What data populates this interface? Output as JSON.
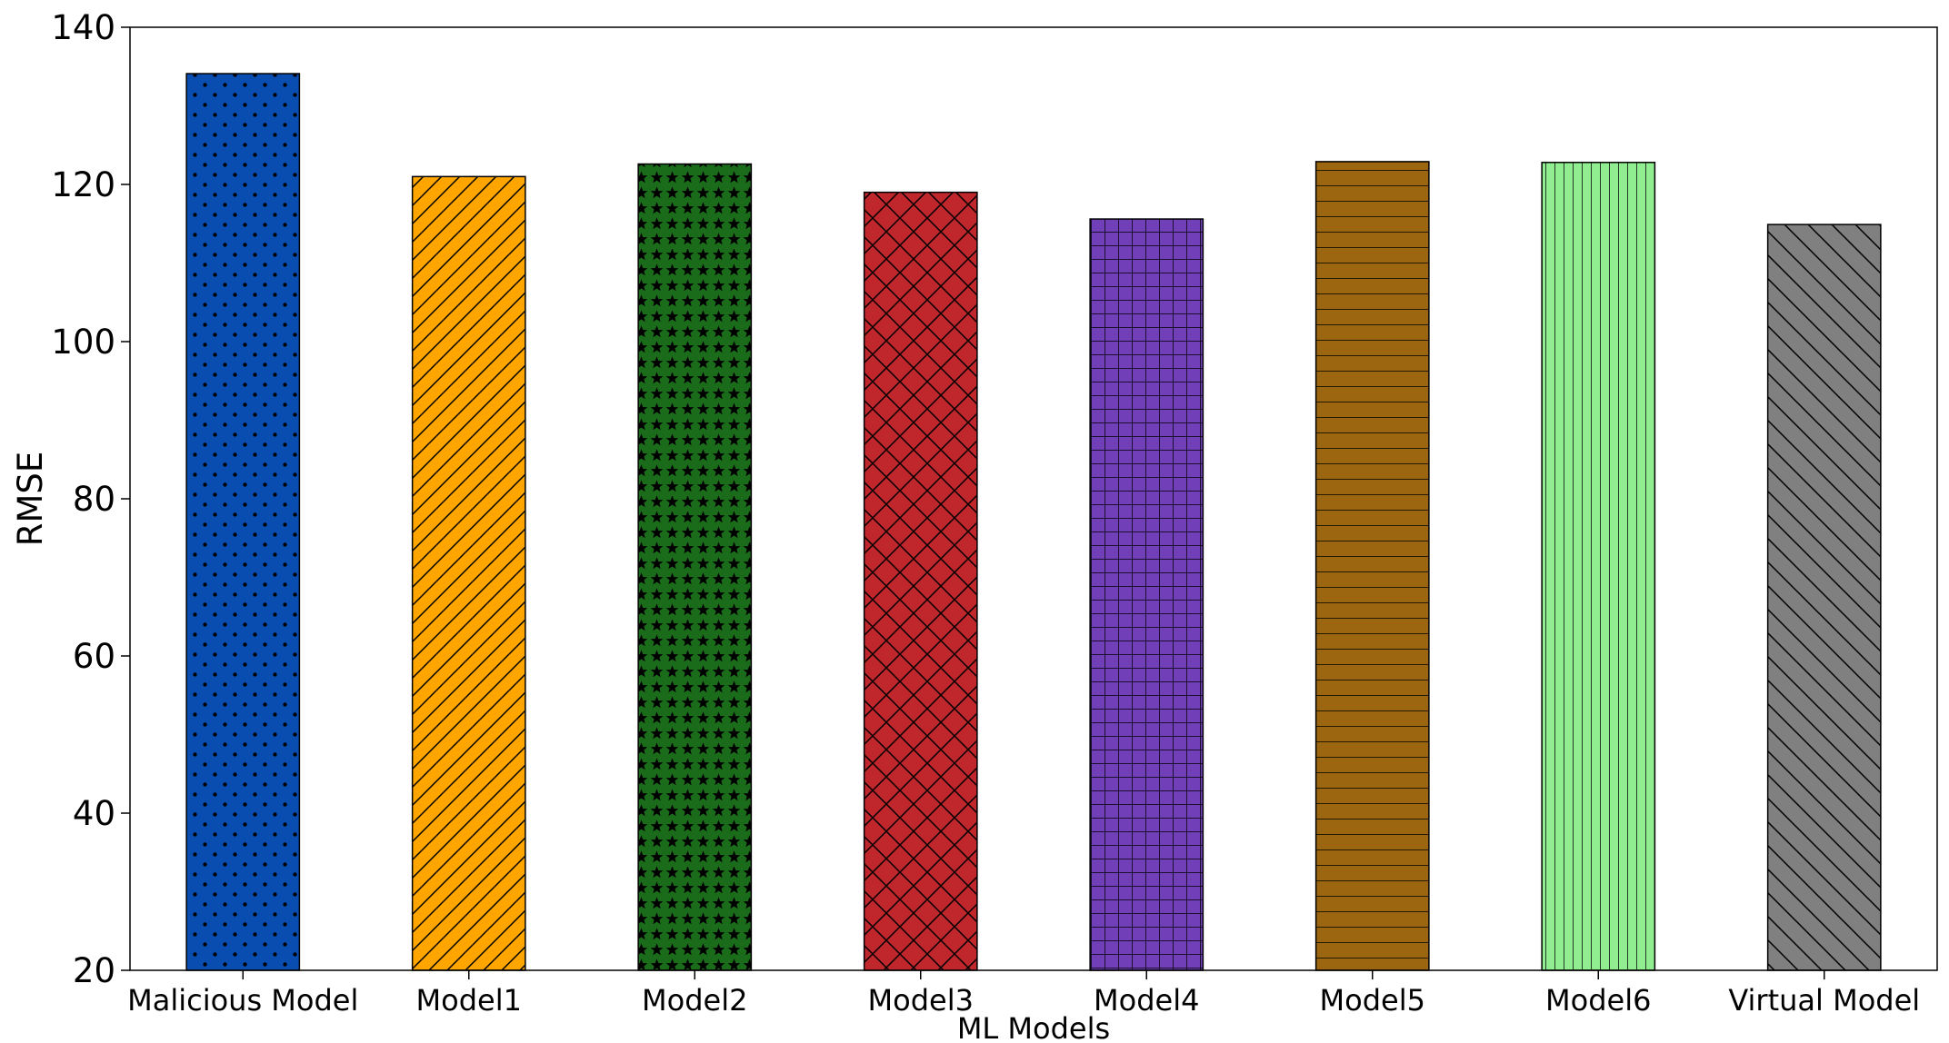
{
  "chart_data": {
    "type": "bar",
    "title": "",
    "xlabel": "ML Models",
    "ylabel": "RMSE",
    "ylim": [
      20,
      140
    ],
    "yticks": [
      20,
      40,
      60,
      80,
      100,
      120,
      140
    ],
    "grid": false,
    "categories": [
      "Malicious Model",
      "Model1",
      "Model2",
      "Model3",
      "Model4",
      "Model5",
      "Model6",
      "Virtual Model"
    ],
    "values": [
      134.1,
      121.0,
      122.6,
      119.0,
      115.6,
      122.9,
      122.8,
      114.9
    ],
    "colors": [
      "#0a4db0",
      "#ffa500",
      "#1a6b1a",
      "#c0272d",
      "#7140b8",
      "#9c6510",
      "#90ee90",
      "#808080"
    ],
    "patterns": [
      "dots",
      "diagonal-forward",
      "stars",
      "crosshatch-diagonal",
      "grid",
      "horizontal",
      "vertical",
      "diagonal-back"
    ]
  }
}
